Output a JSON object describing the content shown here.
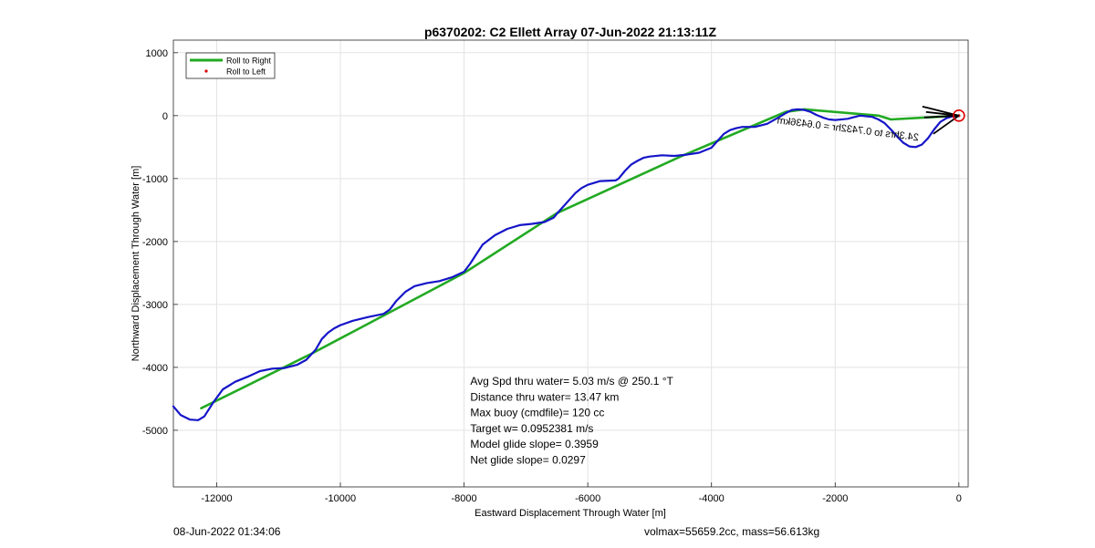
{
  "chart_data": {
    "type": "line",
    "title": "p6370202: C2 Ellett Array 07-Jun-2022 21:13:11Z",
    "xlabel": "Eastward Displacement Through Water [m]",
    "ylabel": "Northward Displacement Through Water [m]",
    "xlim": [
      -12700,
      150
    ],
    "ylim": [
      -5900,
      1200
    ],
    "xticks": [
      -12000,
      -10000,
      -8000,
      -6000,
      -4000,
      -2000,
      0
    ],
    "yticks": [
      1000,
      0,
      -1000,
      -2000,
      -3000,
      -4000,
      -5000
    ],
    "grid": true,
    "legend": {
      "placement": "top-left",
      "entries": [
        "Roll to Right",
        "Roll to Left"
      ]
    },
    "series": [
      {
        "name": "Roll to Right",
        "color": "#22aa22",
        "x": [
          -12250,
          -10500,
          -8000,
          -6500,
          -4500,
          -2800,
          -2500,
          -1300,
          -1100,
          0
        ],
        "y": [
          -4650,
          -3800,
          -2500,
          -1550,
          -650,
          60,
          100,
          0,
          -60,
          0
        ]
      },
      {
        "name": "Roll to Left",
        "color": "#dd0000",
        "marker": "dot",
        "x": [
          0
        ],
        "y": [
          0
        ]
      },
      {
        "name": "",
        "color": "#1515c8",
        "x": [
          -12700,
          -12580,
          -12430,
          -12300,
          -12200,
          -12050,
          -11900,
          -11700,
          -11500,
          -11300,
          -11100,
          -10900,
          -10700,
          -10550,
          -10400,
          -10300,
          -10200,
          -10100,
          -10000,
          -9800,
          -9550,
          -9300,
          -9200,
          -9100,
          -8950,
          -8800,
          -8600,
          -8400,
          -8200,
          -8000,
          -7900,
          -7800,
          -7700,
          -7500,
          -7300,
          -7100,
          -6900,
          -6700,
          -6550,
          -6500,
          -6400,
          -6300,
          -6200,
          -6100,
          -6000,
          -5800,
          -5550,
          -5500,
          -5400,
          -5300,
          -5200,
          -5100,
          -5000,
          -4800,
          -4600,
          -4400,
          -4200,
          -4000,
          -3900,
          -3800,
          -3700,
          -3600,
          -3500,
          -3300,
          -3100,
          -2900,
          -2800,
          -2700,
          -2600,
          -2500,
          -2400,
          -2300,
          -2200,
          -2100,
          -2000,
          -1800,
          -1600,
          -1400,
          -1300,
          -1200,
          -1100,
          -1000,
          -900,
          -800,
          -700,
          -600,
          -500,
          -400,
          -300,
          -200,
          -100,
          0
        ],
        "y": [
          -4620,
          -4760,
          -4830,
          -4840,
          -4780,
          -4550,
          -4350,
          -4230,
          -4150,
          -4060,
          -4020,
          -4010,
          -3960,
          -3880,
          -3720,
          -3550,
          -3450,
          -3380,
          -3330,
          -3260,
          -3200,
          -3150,
          -3080,
          -2950,
          -2800,
          -2710,
          -2660,
          -2630,
          -2570,
          -2480,
          -2350,
          -2200,
          -2050,
          -1900,
          -1800,
          -1740,
          -1720,
          -1690,
          -1620,
          -1560,
          -1450,
          -1340,
          -1230,
          -1150,
          -1100,
          -1040,
          -1030,
          -1000,
          -880,
          -780,
          -720,
          -670,
          -650,
          -630,
          -640,
          -620,
          -590,
          -510,
          -400,
          -290,
          -230,
          -200,
          -180,
          -180,
          -130,
          -20,
          40,
          90,
          100,
          90,
          60,
          10,
          -30,
          -60,
          -70,
          -50,
          0,
          -20,
          -60,
          -120,
          -220,
          -330,
          -430,
          -490,
          -500,
          -460,
          -360,
          -220,
          -100,
          -40,
          -10,
          0
        ]
      }
    ],
    "annotations": [
      {
        "text": "Avg Spd thru water=  5.03 m/s @ 250.1 °T",
        "x": -7900,
        "y": -4280
      },
      {
        "text": "Distance thru water= 13.47 km",
        "x": -7900,
        "y": -4530
      },
      {
        "text": "Max buoy (cmdfile)= 120 cc",
        "x": -7900,
        "y": -4780
      },
      {
        "text": "Target w= 0.0952381 m/s",
        "x": -7900,
        "y": -5030
      },
      {
        "text": "Model glide slope= 0.3959",
        "x": -7900,
        "y": -5280
      },
      {
        "text": "Net glide slope= 0.0297",
        "x": -7900,
        "y": -5530
      },
      {
        "text": "24.3hrs to 0.7432hr = 0.6436km",
        "x": -3150,
        "y": -370,
        "rotated": true
      }
    ]
  },
  "footer": {
    "left": "08-Jun-2022 01:34:06",
    "right": "volmax=55659.2cc, mass=56.613kg"
  }
}
